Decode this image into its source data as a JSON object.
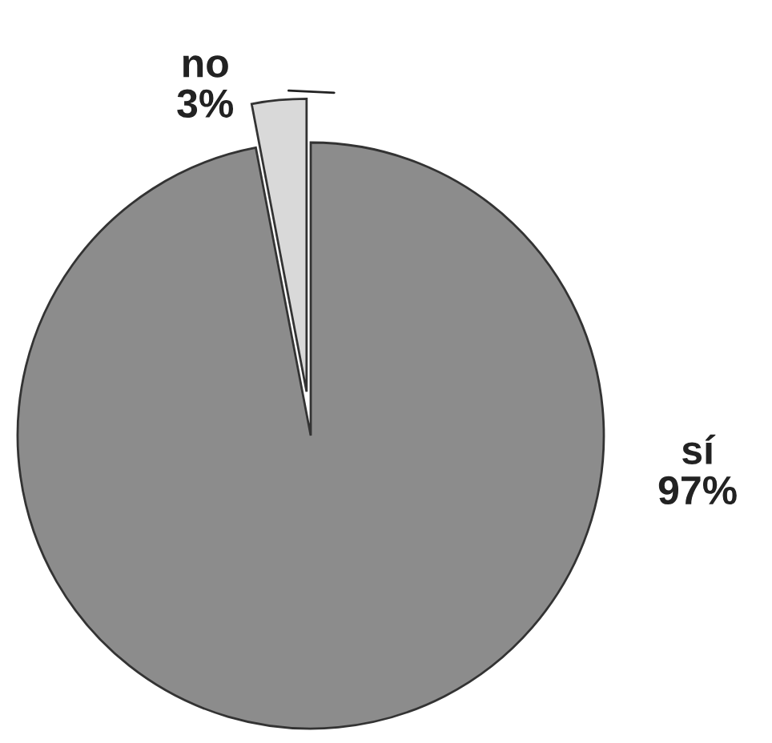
{
  "chart_data": {
    "type": "pie",
    "categories": [
      "no",
      "sí"
    ],
    "values": [
      3,
      97
    ],
    "value_labels": [
      "3%",
      "97%"
    ],
    "colors": [
      "#d9d9d9",
      "#8c8c8c"
    ],
    "legend": false
  }
}
